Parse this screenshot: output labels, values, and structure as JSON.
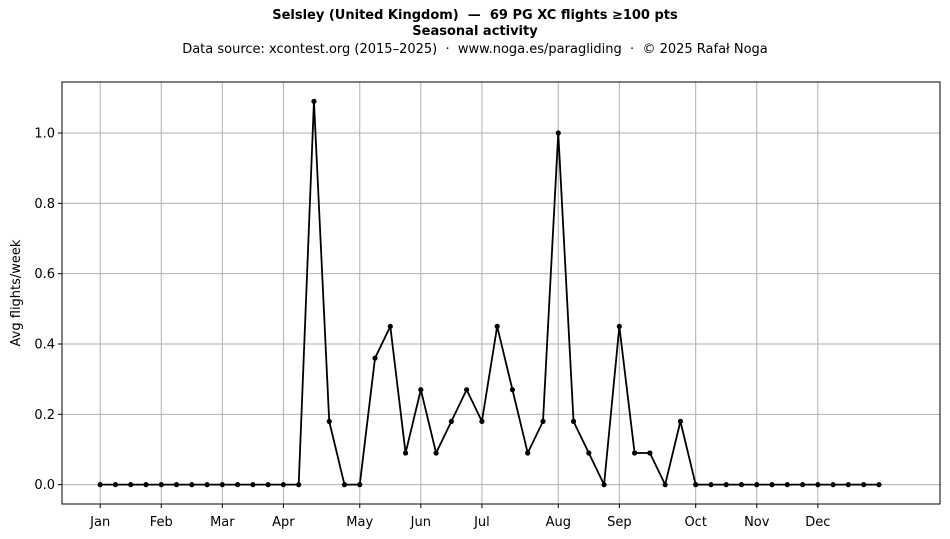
{
  "chart_data": {
    "type": "line",
    "title": "Selsley (United Kingdom)  —  69 PG XC flights ≥100 pts",
    "subtitle": "Seasonal activity",
    "source_line": "Data source: xcontest.org (2015–2025)  ·  www.noga.es/paragliding  ·  © 2025 Rafał Noga",
    "xlabel": "",
    "ylabel": "Avg flights/week",
    "ylim": [
      -0.055,
      1.145
    ],
    "yticks": [
      0.0,
      0.2,
      0.4,
      0.6,
      0.8,
      1.0
    ],
    "ytick_labels": [
      "0.0",
      "0.2",
      "0.4",
      "0.6",
      "0.8",
      "1.0"
    ],
    "xlim": [
      -2.5,
      55
    ],
    "month_ticks": [
      {
        "label": "Jan",
        "week": 0
      },
      {
        "label": "Feb",
        "week": 4
      },
      {
        "label": "Mar",
        "week": 8
      },
      {
        "label": "Apr",
        "week": 12
      },
      {
        "label": "May",
        "week": 17
      },
      {
        "label": "Jun",
        "week": 21
      },
      {
        "label": "Jul",
        "week": 25
      },
      {
        "label": "Aug",
        "week": 30
      },
      {
        "label": "Sep",
        "week": 34
      },
      {
        "label": "Oct",
        "week": 39
      },
      {
        "label": "Nov",
        "week": 43
      },
      {
        "label": "Dec",
        "week": 47
      }
    ],
    "grid": true,
    "line_color": "#000000",
    "grid_color": "#b0b0b0",
    "series": [
      {
        "x": [
          0,
          1,
          2,
          3,
          4,
          5,
          6,
          7,
          8,
          9,
          10,
          11,
          12,
          13,
          14,
          15,
          16,
          17,
          18,
          19,
          20,
          21,
          22,
          23,
          24,
          25,
          26,
          27,
          28,
          29,
          30,
          31,
          32,
          33,
          34,
          35,
          36,
          37,
          38,
          39,
          40,
          41,
          42,
          43,
          44,
          45,
          46,
          47,
          48,
          49,
          50,
          51
        ],
        "values": [
          0,
          0,
          0,
          0,
          0,
          0,
          0,
          0,
          0,
          0,
          0,
          0,
          0,
          0,
          1.09,
          0.18,
          0,
          0,
          0.36,
          0.45,
          0.09,
          0.27,
          0.09,
          0.18,
          0.27,
          0.18,
          0.45,
          0.27,
          0.09,
          0.18,
          1.0,
          0.18,
          0.09,
          0,
          0.45,
          0.09,
          0.09,
          0,
          0.18,
          0,
          0,
          0,
          0,
          0,
          0,
          0,
          0,
          0,
          0,
          0,
          0,
          0
        ]
      }
    ]
  }
}
